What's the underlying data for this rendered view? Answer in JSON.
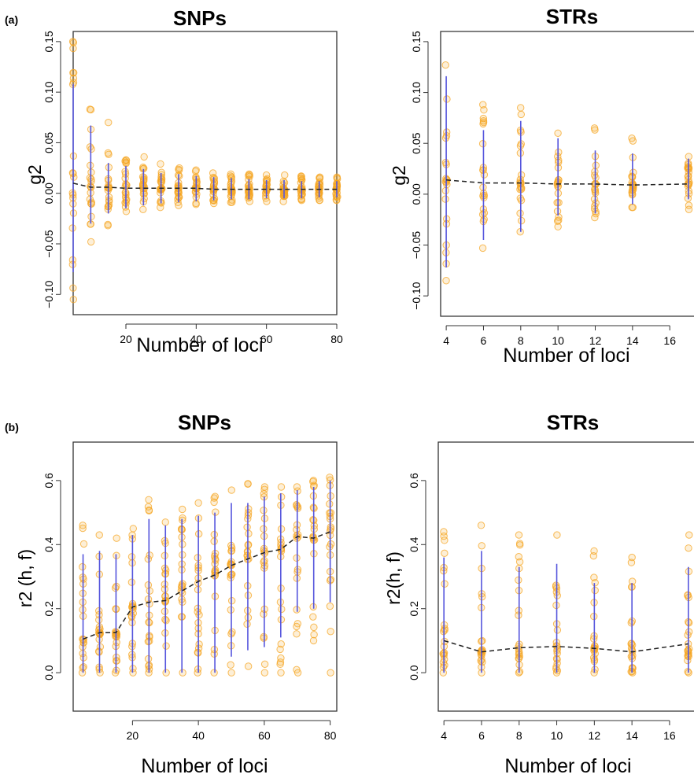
{
  "panel_labels": [
    "(a)",
    "(b)"
  ],
  "chart_data": [
    {
      "type": "scatter",
      "panel": "(a)",
      "title": "SNPs",
      "xlabel": "Number of loci",
      "ylabel": "g2",
      "xlim": [
        5,
        80
      ],
      "ylim": [
        -0.12,
        0.16
      ],
      "xticks": [
        20,
        40,
        60,
        80
      ],
      "yticks": [
        -0.1,
        -0.05,
        0.0,
        0.05,
        0.1,
        0.15
      ],
      "ytick_labels": [
        "−0.10",
        "−0.05",
        "0.00",
        "0.05",
        "0.10",
        "0.15"
      ],
      "x": [
        5,
        10,
        15,
        20,
        25,
        30,
        35,
        40,
        45,
        50,
        55,
        60,
        65,
        70,
        75,
        80
      ],
      "mean": [
        0.01,
        0.006,
        0.006,
        0.005,
        0.005,
        0.005,
        0.005,
        0.005,
        0.004,
        0.004,
        0.004,
        0.004,
        0.004,
        0.004,
        0.004,
        0.004
      ],
      "range_low": [
        -0.078,
        -0.03,
        -0.02,
        -0.015,
        -0.012,
        -0.01,
        -0.009,
        -0.008,
        -0.007,
        -0.006,
        -0.006,
        -0.005,
        -0.005,
        -0.005,
        -0.004,
        -0.004
      ],
      "range_high": [
        0.108,
        0.067,
        0.03,
        0.027,
        0.024,
        0.02,
        0.019,
        0.017,
        0.016,
        0.015,
        0.014,
        0.013,
        0.013,
        0.012,
        0.012,
        0.012
      ],
      "points_low": [
        -0.105,
        -0.048,
        -0.032,
        -0.018,
        -0.016,
        -0.014,
        -0.012,
        -0.011,
        -0.01,
        -0.009,
        -0.008,
        -0.008,
        -0.008,
        -0.007,
        -0.007,
        -0.007
      ],
      "points_high": [
        0.15,
        0.083,
        0.07,
        0.033,
        0.036,
        0.029,
        0.025,
        0.023,
        0.02,
        0.019,
        0.019,
        0.018,
        0.018,
        0.017,
        0.016,
        0.016
      ],
      "colors": {
        "points": "#f5a623",
        "range": "#5555dd",
        "mean": "#222222"
      }
    },
    {
      "type": "scatter",
      "panel": "(a)",
      "title": "STRs",
      "xlabel": "Number of loci",
      "ylabel": "g2",
      "xlim": [
        3.7,
        17.3
      ],
      "ylim": [
        -0.12,
        0.16
      ],
      "xticks": [
        4,
        6,
        8,
        10,
        12,
        14,
        16
      ],
      "yticks": [
        -0.1,
        -0.05,
        0.0,
        0.05,
        0.1,
        0.15
      ],
      "ytick_labels": [
        "−0.10",
        "−0.05",
        "0.00",
        "0.05",
        "0.10",
        "0.15"
      ],
      "x": [
        4,
        6,
        8,
        10,
        12,
        14,
        17
      ],
      "mean": [
        0.014,
        0.011,
        0.011,
        0.01,
        0.01,
        0.009,
        0.01
      ],
      "range_low": [
        -0.072,
        -0.045,
        -0.037,
        -0.021,
        -0.019,
        -0.01,
        -0.005
      ],
      "range_high": [
        0.116,
        0.063,
        0.072,
        0.055,
        0.043,
        0.04,
        0.035
      ],
      "points_low": [
        -0.085,
        -0.053,
        -0.037,
        -0.032,
        -0.023,
        -0.013,
        -0.015
      ],
      "points_high": [
        0.127,
        0.088,
        0.085,
        0.06,
        0.065,
        0.055,
        0.037
      ],
      "colors": {
        "points": "#f5a623",
        "range": "#5555dd",
        "mean": "#222222"
      }
    },
    {
      "type": "scatter",
      "panel": "(b)",
      "title": "SNPs",
      "xlabel": "Number of loci",
      "ylabel": "r2  (h, f)",
      "xlim": [
        2,
        82
      ],
      "ylim": [
        -0.12,
        0.72
      ],
      "xticks": [
        20,
        40,
        60,
        80
      ],
      "yticks": [
        0.0,
        0.2,
        0.4,
        0.6
      ],
      "ytick_labels": [
        "0.0",
        "0.2",
        "0.4",
        "0.6"
      ],
      "x": [
        5,
        10,
        15,
        20,
        25,
        30,
        35,
        40,
        45,
        50,
        55,
        60,
        65,
        70,
        75,
        80
      ],
      "mean": [
        0.105,
        0.125,
        0.125,
        0.205,
        0.22,
        0.225,
        0.255,
        0.285,
        0.305,
        0.335,
        0.355,
        0.375,
        0.385,
        0.425,
        0.42,
        0.44
      ],
      "range_low": [
        0.0,
        0.0,
        0.0,
        0.0,
        0.0,
        0.0,
        0.0,
        0.0,
        0.0,
        0.05,
        0.07,
        0.08,
        0.11,
        0.19,
        0.2,
        0.22
      ],
      "range_high": [
        0.37,
        0.38,
        0.37,
        0.43,
        0.48,
        0.46,
        0.48,
        0.49,
        0.5,
        0.53,
        0.53,
        0.55,
        0.56,
        0.57,
        0.58,
        0.6
      ],
      "points_low": [
        0.0,
        0.0,
        0.0,
        0.0,
        0.0,
        0.0,
        0.0,
        0.0,
        0.0,
        0.0,
        0.02,
        0.0,
        0.0,
        0.0,
        0.1,
        0.0
      ],
      "points_high": [
        0.46,
        0.43,
        0.42,
        0.45,
        0.54,
        0.47,
        0.51,
        0.53,
        0.55,
        0.57,
        0.59,
        0.58,
        0.58,
        0.58,
        0.6,
        0.61
      ],
      "colors": {
        "points": "#f5a623",
        "range": "#5555dd",
        "mean": "#222222"
      }
    },
    {
      "type": "scatter",
      "panel": "(b)",
      "title": "STRs",
      "xlabel": "Number of loci",
      "ylabel": "r2(h, f)",
      "xlim": [
        3.7,
        17.3
      ],
      "ylim": [
        -0.12,
        0.72
      ],
      "xticks": [
        4,
        6,
        8,
        10,
        12,
        14,
        16
      ],
      "yticks": [
        0.0,
        0.2,
        0.4,
        0.6
      ],
      "ytick_labels": [
        "0.0",
        "0.2",
        "0.4",
        "0.6"
      ],
      "x": [
        4,
        6,
        8,
        10,
        12,
        14,
        17
      ],
      "mean": [
        0.1,
        0.065,
        0.078,
        0.082,
        0.076,
        0.065,
        0.09
      ],
      "range_low": [
        0.0,
        0.0,
        0.0,
        0.0,
        0.0,
        0.0,
        0.0
      ],
      "range_high": [
        0.36,
        0.38,
        0.33,
        0.34,
        0.28,
        0.28,
        0.33
      ],
      "points_low": [
        0.0,
        0.0,
        0.0,
        0.0,
        0.0,
        0.0,
        0.0
      ],
      "points_high": [
        0.44,
        0.46,
        0.43,
        0.43,
        0.38,
        0.36,
        0.43
      ],
      "colors": {
        "points": "#f5a623",
        "range": "#5555dd",
        "mean": "#222222"
      }
    }
  ]
}
